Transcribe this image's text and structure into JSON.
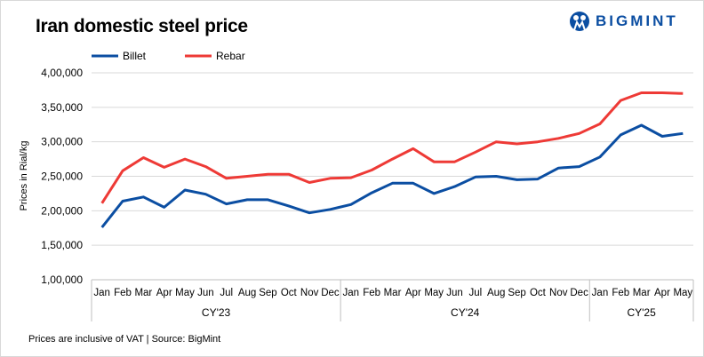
{
  "title": "Iran domestic steel price",
  "logo": {
    "text": "BIGMINT"
  },
  "footer": "Prices are inclusive of VAT | Source: BigMint",
  "chart_data": {
    "type": "line",
    "title": "Iran domestic steel price",
    "ylabel": "Prices in Rial/kg",
    "xlabel": "",
    "ylim": [
      100000,
      400000
    ],
    "yticks": [
      100000,
      150000,
      200000,
      250000,
      300000,
      350000,
      400000
    ],
    "ytick_labels": [
      "1,00,000",
      "1,50,000",
      "2,00,000",
      "2,50,000",
      "3,00,000",
      "3,50,000",
      "4,00,000"
    ],
    "grid": true,
    "legend": "top-left",
    "categories": [
      "Jan",
      "Feb",
      "Mar",
      "Apr",
      "May",
      "Jun",
      "Jul",
      "Aug",
      "Sep",
      "Oct",
      "Nov",
      "Dec",
      "Jan",
      "Feb",
      "Mar",
      "Apr",
      "May",
      "Jun",
      "Jul",
      "Aug",
      "Sep",
      "Oct",
      "Nov",
      "Dec",
      "Jan",
      "Feb",
      "Mar",
      "Apr",
      "May"
    ],
    "groups": [
      {
        "label": "CY'23",
        "count": 12
      },
      {
        "label": "CY'24",
        "count": 12
      },
      {
        "label": "CY'25",
        "count": 5
      }
    ],
    "series": [
      {
        "name": "Billet",
        "color": "#0b4ea2",
        "values": [
          176000,
          214000,
          220000,
          205000,
          230000,
          224000,
          210000,
          216000,
          216000,
          207000,
          197000,
          202000,
          209000,
          226000,
          240000,
          240000,
          225000,
          235000,
          249000,
          250000,
          245000,
          246000,
          262000,
          264000,
          278000,
          310000,
          324000,
          308000,
          312000
        ]
      },
      {
        "name": "Rebar",
        "color": "#ee3a36",
        "values": [
          211000,
          258000,
          277000,
          263000,
          275000,
          264000,
          247000,
          250000,
          253000,
          253000,
          241000,
          247000,
          248000,
          259000,
          275000,
          290000,
          271000,
          271000,
          285000,
          300000,
          297000,
          300000,
          305000,
          312000,
          326000,
          360000,
          371000,
          371000,
          370000
        ]
      }
    ]
  }
}
